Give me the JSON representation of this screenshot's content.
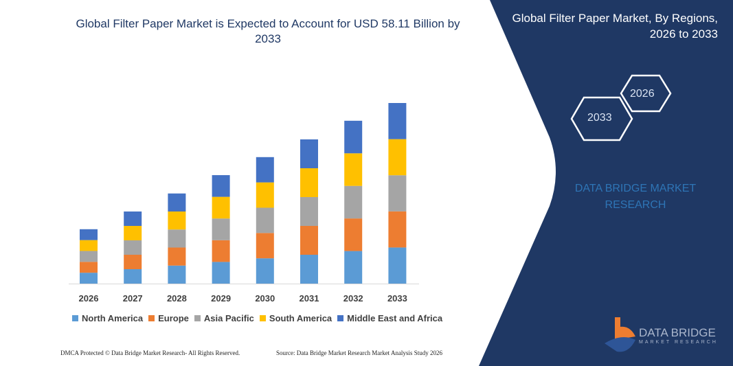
{
  "header": {
    "title": "Global Filter Paper Market is Expected to Account for USD 58.11 Billion by 2033"
  },
  "side_panel": {
    "title": "Global Filter Paper Market, By Regions, 2026 to 2033",
    "hex_start": "2026",
    "hex_end": "2033",
    "brand_text": "DATA BRIDGE MARKET RESEARCH",
    "logo_line1": "DATA BRIDGE",
    "logo_line2": "MARKET RESEARCH",
    "background_color": "#1f3864"
  },
  "footer": {
    "left": "DMCA Protected © Data Bridge Market Research- All Rights Reserved.",
    "right": "Source: Data Bridge Market Research Market Analysis Study 2026"
  },
  "chart_data": {
    "type": "bar",
    "stacked": true,
    "title": "Global Filter Paper Market is Expected to Account for USD 58.11 Billion by 2033",
    "categories": [
      "2026",
      "2027",
      "2028",
      "2029",
      "2030",
      "2031",
      "2032",
      "2033"
    ],
    "ylim": [
      0,
      58.11
    ],
    "y_axis_shown": false,
    "grid": false,
    "legend_position": "bottom",
    "series": [
      {
        "name": "North America",
        "color": "#5b9bd5",
        "values": [
          3.5,
          4.64,
          5.8,
          6.98,
          8.14,
          9.28,
          10.48,
          11.62
        ]
      },
      {
        "name": "Europe",
        "color": "#ed7d31",
        "values": [
          3.5,
          4.64,
          5.8,
          6.98,
          8.14,
          9.28,
          10.48,
          11.62
        ]
      },
      {
        "name": "Asia Pacific",
        "color": "#a5a5a5",
        "values": [
          3.5,
          4.64,
          5.8,
          6.98,
          8.14,
          9.28,
          10.48,
          11.62
        ]
      },
      {
        "name": "South America",
        "color": "#ffc000",
        "values": [
          3.5,
          4.64,
          5.8,
          6.98,
          8.14,
          9.28,
          10.48,
          11.62
        ]
      },
      {
        "name": "Middle East and Africa",
        "color": "#4472c4",
        "values": [
          3.5,
          4.64,
          5.8,
          6.98,
          8.14,
          9.28,
          10.48,
          11.63
        ]
      }
    ]
  }
}
